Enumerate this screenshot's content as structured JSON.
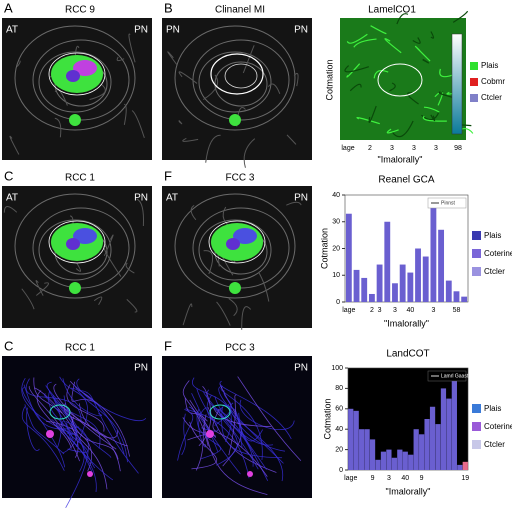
{
  "panels": [
    {
      "letter": "A",
      "title": "RCC 9",
      "left": "AT",
      "right": "PN"
    },
    {
      "letter": "B",
      "title": "Clinanel MI",
      "left": "PN",
      "right": "PN"
    },
    {
      "letter": "C",
      "title": "RCC 1",
      "left": "AT",
      "right": "PN"
    },
    {
      "letter": "F",
      "title": "FCC 3",
      "left": "AT",
      "right": "PN"
    },
    {
      "letter": "C",
      "title": "RCC 1",
      "right": "PN"
    },
    {
      "letter": "F",
      "title": "PCC 3",
      "right": "PN"
    }
  ],
  "map_panel": {
    "title": "LamelCO1",
    "ylabel": "Cotmation",
    "xlabel": "\"Imalorally\"",
    "xtick_labels": [
      "lage",
      "2",
      "3",
      "3",
      "3",
      "98"
    ],
    "legend": [
      {
        "name": "Plais",
        "color": "#2ee02e"
      },
      {
        "name": "Cobmr",
        "color": "#e02020"
      },
      {
        "name": "Ctcler",
        "color": "#8080c8"
      }
    ]
  },
  "chart_data": [
    {
      "type": "bar",
      "title": "Reanel GCA",
      "ylabel": "Cotmation",
      "xlabel": "\"Imalorally\"",
      "background": "#ffffff",
      "categories": [
        "lage",
        null,
        null,
        "2",
        "3",
        null,
        "3",
        null,
        "40",
        null,
        null,
        "3",
        null,
        null,
        "58",
        null
      ],
      "series": [
        {
          "name": "Pinnst",
          "color": "#6a5fd0",
          "values": [
            33,
            12,
            9,
            3,
            14,
            30,
            7,
            14,
            11,
            20,
            17,
            36,
            27,
            8,
            4,
            2
          ]
        }
      ],
      "ylim": [
        0,
        40
      ],
      "yticks": [
        0,
        10,
        20,
        30,
        40
      ],
      "side_legend": [
        {
          "name": "Plais",
          "color": "#3a3ab0"
        },
        {
          "name": "Coterine",
          "color": "#7a66d8"
        },
        {
          "name": "Ctcler",
          "color": "#9a92e0"
        }
      ]
    },
    {
      "type": "bar",
      "title": "LandCOT",
      "ylabel": "Cotmation",
      "xlabel": "\"Imalorally\"",
      "background": "#000000",
      "categories": [
        "lage",
        null,
        null,
        null,
        "9",
        null,
        null,
        "3",
        null,
        null,
        "40",
        null,
        null,
        "9",
        null,
        null,
        null,
        null,
        null,
        null,
        null,
        "19"
      ],
      "series": [
        {
          "name": "Lamrl Gaaste",
          "color": "#6a5fd0",
          "values": [
            60,
            58,
            40,
            40,
            30,
            10,
            18,
            20,
            12,
            20,
            18,
            15,
            40,
            35,
            50,
            62,
            45,
            80,
            70,
            88,
            5,
            8
          ]
        }
      ],
      "highlight_last_color": "#e86a8a",
      "ylim": [
        0,
        100
      ],
      "yticks": [
        0,
        20,
        40,
        60,
        80,
        100
      ],
      "side_legend": [
        {
          "name": "Plais",
          "color": "#3a7ad8"
        },
        {
          "name": "Coterine",
          "color": "#9a5ad8"
        },
        {
          "name": "Ctcler",
          "color": "#c8c8e8"
        }
      ]
    }
  ]
}
